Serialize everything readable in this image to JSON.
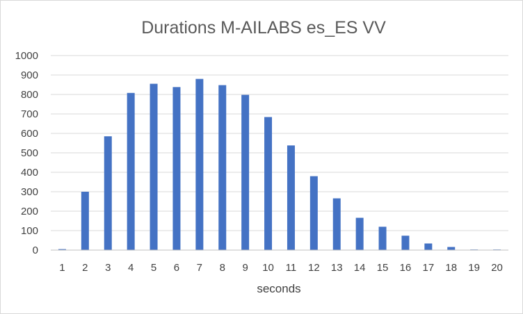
{
  "chart_data": {
    "type": "bar",
    "title": "Durations M-AILABS es_ES VV",
    "xlabel": "seconds",
    "ylabel": "",
    "categories": [
      "1",
      "2",
      "3",
      "4",
      "5",
      "6",
      "7",
      "8",
      "9",
      "10",
      "11",
      "12",
      "13",
      "14",
      "15",
      "16",
      "17",
      "18",
      "19",
      "20"
    ],
    "values": [
      5,
      300,
      585,
      808,
      855,
      838,
      880,
      848,
      798,
      684,
      538,
      380,
      266,
      166,
      120,
      74,
      34,
      16,
      3,
      3
    ],
    "ylim": [
      0,
      1000
    ],
    "yticks": [
      0,
      100,
      200,
      300,
      400,
      500,
      600,
      700,
      800,
      900,
      1000
    ],
    "grid": true,
    "legend": "none",
    "bar_color": "#4472c4",
    "grid_color": "#d9d9d9",
    "axis_color": "#bfbfbf"
  }
}
